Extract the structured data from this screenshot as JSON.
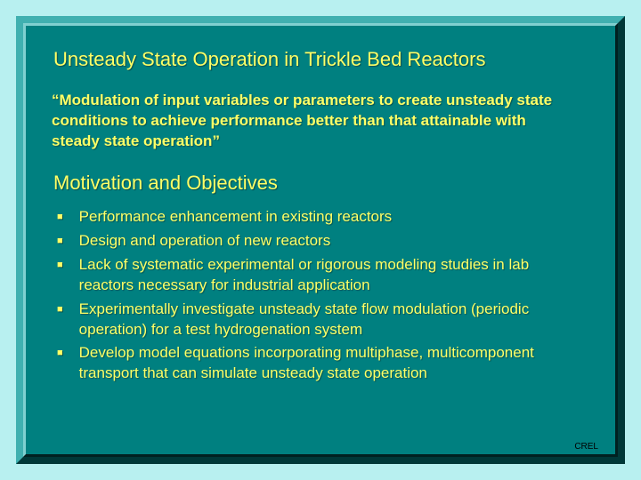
{
  "colors": {
    "outer_bg": "#b8f0f0",
    "panel_bg": "#008080",
    "bevel_light": "#40b0b0",
    "bevel_dark": "#003838",
    "text": "#ffff66"
  },
  "title1": "Unsteady State Operation in Trickle Bed Reactors",
  "quote": "“Modulation of input variables or parameters to create unsteady state conditions to achieve performance better than that attainable with steady state operation”",
  "title2": "Motivation and Objectives",
  "bullets": [
    "Performance enhancement in existing reactors",
    "Design and operation of new reactors",
    "Lack of systematic experimental or rigorous modeling studies in lab reactors necessary for industrial application",
    "Experimentally investigate unsteady state flow modulation (periodic operation) for a test hydrogenation system",
    "Develop model equations incorporating multiphase, multicomponent transport that can simulate unsteady state operation"
  ],
  "footer": "CREL"
}
